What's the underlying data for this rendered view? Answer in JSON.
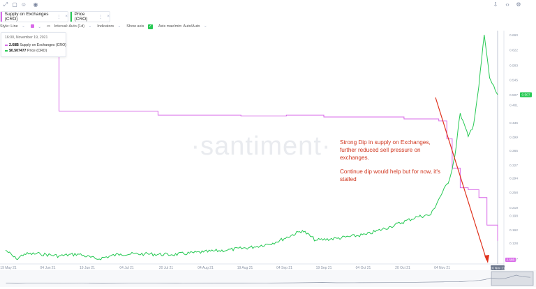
{
  "toolbar": {
    "icons": [
      "expand-icon",
      "comment-icon",
      "smile-icon",
      "eye-icon",
      "download-icon",
      "code-icon",
      "gear-icon"
    ]
  },
  "metrics": {
    "tabs": [
      {
        "label": "Supply on Exchanges (CRO)",
        "color": "#d869e8",
        "menu": "⋮",
        "close": "×"
      },
      {
        "label": "Price (CRO)",
        "color": "#26c953",
        "menu": "⋮",
        "close": "×"
      }
    ]
  },
  "settings": {
    "style_label": "Style: Line",
    "interval_label": "Interval: Auto (1d)",
    "indicators_label": "Indicators",
    "show_axis_label": "Show axis",
    "axis_mode_label": "Axis max/min: Auto/Auto"
  },
  "tooltip": {
    "date": "16:00, November 19, 2021",
    "supply_value": "2.68B",
    "supply_label": "Supply on Exchanges (CRO)",
    "price_value": "$0.507477",
    "price_label": "Price (CRO)"
  },
  "watermark": "·santiment·",
  "annotation": {
    "line1": "Strong Dip in supply on Exchanges, further reduced sell pressure on exchanges.",
    "line2": "Continue dip would help but for now, it's stalled"
  },
  "colors": {
    "supply": "#d869e8",
    "price": "#26c953",
    "arrow": "#e0311c",
    "axis_text": "#8a94a6"
  },
  "chart_data": {
    "type": "line",
    "x_tick_labels": [
      "19 May 21",
      "04 Jun 21",
      "19 Jun 21",
      "04 Jul 21",
      "20 Jul 21",
      "04 Aug 21",
      "19 Aug 21",
      "04 Sep 21",
      "19 Sep 21",
      "04 Oct 21",
      "20 Oct 21",
      "04 Nov 21"
    ],
    "x_end_label": "16 Nov 21",
    "series": [
      {
        "name": "Supply on Exchanges (CRO)",
        "color": "#d869e8",
        "axis": "right-inner",
        "y_tick_labels": [
          "3.14B",
          "2.58B"
        ],
        "current_label": "2.68B",
        "x": [
          "2021-05-19",
          "2021-06-06",
          "2021-06-08",
          "2021-06-15",
          "2021-07-01",
          "2021-07-15",
          "2021-08-01",
          "2021-08-15",
          "2021-09-01",
          "2021-09-15",
          "2021-10-01",
          "2021-10-15",
          "2021-10-23",
          "2021-10-28",
          "2021-10-31",
          "2021-11-02",
          "2021-11-05",
          "2021-11-08",
          "2021-11-12",
          "2021-11-15",
          "2021-11-19"
        ],
        "values": [
          3.7,
          3.7,
          3.34,
          3.34,
          3.34,
          3.32,
          3.32,
          3.315,
          3.32,
          3.31,
          3.31,
          3.3,
          3.3,
          3.29,
          3.2,
          3.05,
          2.95,
          2.94,
          2.9,
          2.76,
          2.68
        ]
      },
      {
        "name": "Price (CRO)",
        "color": "#26c953",
        "axis": "right-outer",
        "y_tick_labels": [
          "0.660",
          "0.622",
          "0.583",
          "0.545",
          "0.507",
          "0.481",
          "0.436",
          "0.399",
          "0.365",
          "0.327",
          "0.294",
          "0.258",
          "0.219",
          "0.198",
          "0.162",
          "0.128",
          "0.087"
        ],
        "current_label": "0.507",
        "x": [
          "2021-05-19",
          "2021-05-23",
          "2021-05-26",
          "2021-06-01",
          "2021-06-08",
          "2021-06-15",
          "2021-06-22",
          "2021-07-01",
          "2021-07-10",
          "2021-07-20",
          "2021-08-01",
          "2021-08-10",
          "2021-08-20",
          "2021-08-28",
          "2021-09-07",
          "2021-09-12",
          "2021-09-20",
          "2021-10-01",
          "2021-10-10",
          "2021-10-20",
          "2021-10-25",
          "2021-10-28",
          "2021-11-01",
          "2021-11-03",
          "2021-11-05",
          "2021-11-08",
          "2021-11-10",
          "2021-11-12",
          "2021-11-14",
          "2021-11-16",
          "2021-11-19"
        ],
        "values": [
          0.11,
          0.087,
          0.1,
          0.1,
          0.095,
          0.1,
          0.087,
          0.1,
          0.1,
          0.098,
          0.105,
          0.11,
          0.118,
          0.13,
          0.16,
          0.135,
          0.14,
          0.15,
          0.17,
          0.195,
          0.2,
          0.24,
          0.29,
          0.35,
          0.46,
          0.4,
          0.43,
          0.53,
          0.66,
          0.55,
          0.507
        ]
      }
    ],
    "xlabel": "",
    "ylabel": "",
    "grid": false,
    "legend": "top-left"
  }
}
